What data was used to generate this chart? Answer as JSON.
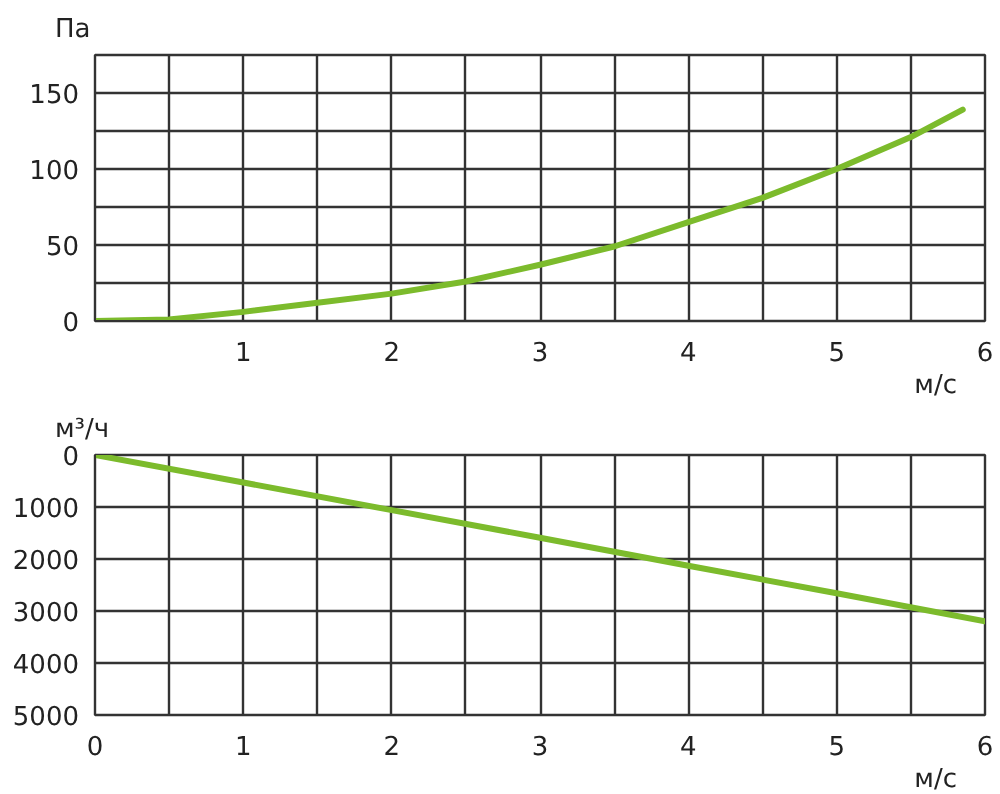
{
  "chart_data": [
    {
      "type": "line",
      "ylabel": "Па",
      "xlabel": "м/с",
      "x": [
        0,
        0.5,
        1,
        1.5,
        2,
        2.5,
        3,
        3.5,
        4,
        4.5,
        5,
        5.5,
        5.85
      ],
      "series": [
        {
          "color": "#7cbb2c",
          "values": [
            0,
            1,
            6,
            12,
            18,
            26,
            37,
            49,
            65,
            81,
            100,
            121,
            139
          ]
        }
      ],
      "xlim": [
        0,
        6
      ],
      "ylim": [
        0,
        175
      ],
      "xticks": [
        {
          "value": 0,
          "label": null
        },
        {
          "value": 0.5,
          "label": null
        },
        1,
        {
          "value": 1.5,
          "label": null
        },
        2,
        {
          "value": 2.5,
          "label": null
        },
        3,
        {
          "value": 3.5,
          "label": null
        },
        4,
        {
          "value": 4.5,
          "label": null
        },
        5,
        {
          "value": 5.5,
          "label": null
        },
        6
      ],
      "yticks": [
        0,
        {
          "value": 25,
          "label": null
        },
        50,
        {
          "value": 75,
          "label": null
        },
        100,
        {
          "value": 125,
          "label": null
        },
        150,
        {
          "value": 175,
          "label": null
        }
      ],
      "grid": true
    },
    {
      "type": "line",
      "ylabel": "м³/ч",
      "xlabel": "м/с",
      "x": [
        0,
        1,
        2,
        3,
        4,
        5,
        6
      ],
      "series": [
        {
          "color": "#7cbb2c",
          "values": [
            0,
            530,
            1060,
            1590,
            2130,
            2660,
            3200
          ]
        }
      ],
      "xlim": [
        0,
        6
      ],
      "ylim": [
        5000,
        0
      ],
      "xticks": [
        0,
        {
          "value": 0.5,
          "label": null
        },
        1,
        {
          "value": 1.5,
          "label": null
        },
        2,
        {
          "value": 2.5,
          "label": null
        },
        3,
        {
          "value": 3.5,
          "label": null
        },
        4,
        {
          "value": 4.5,
          "label": null
        },
        5,
        {
          "value": 5.5,
          "label": null
        },
        6
      ],
      "yticks": [
        0,
        1000,
        2000,
        3000,
        4000,
        5000
      ],
      "grid": true
    }
  ]
}
